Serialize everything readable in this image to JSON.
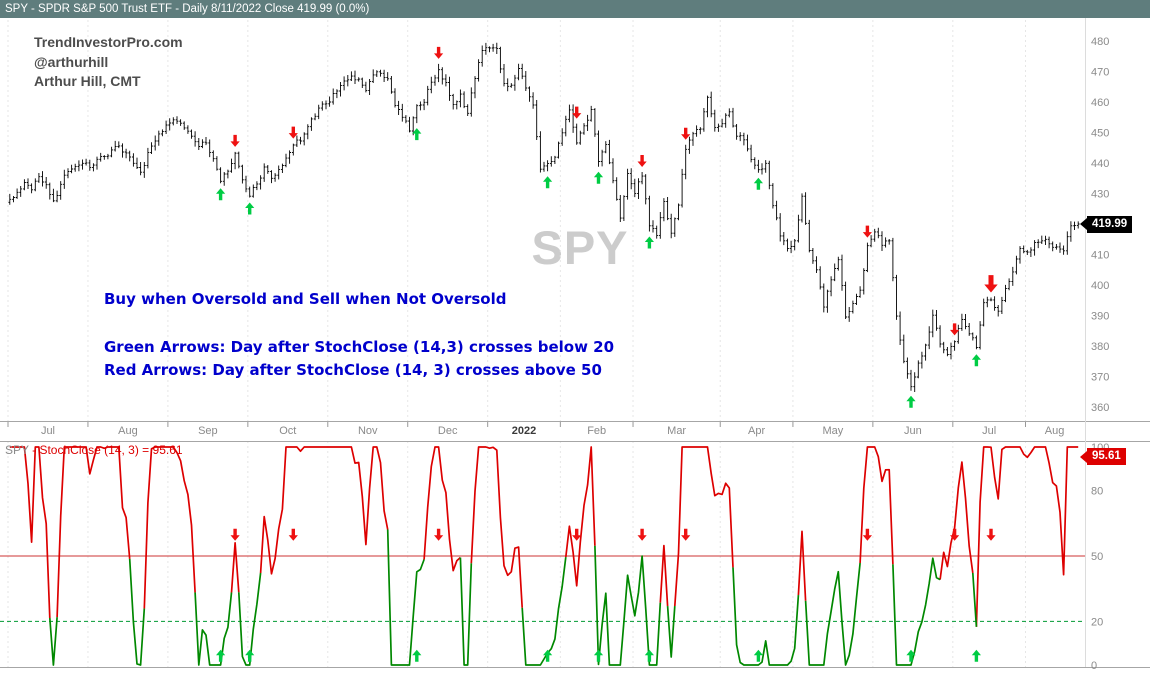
{
  "header": {
    "title": "SPY - SPDR S&P 500 Trust ETF - Daily 8/11/2022 Close 419.99 (0.0%)"
  },
  "branding": {
    "site": "TrendInvestorPro.com",
    "handle": "@arthurhill",
    "author": "Arthur Hill, CMT"
  },
  "watermark": {
    "text": "SPY"
  },
  "annotations": {
    "strategy": "Buy when Oversold and Sell when Not Oversold",
    "green_rule": "Green Arrows: Day after StochClose (14,3) crosses below 20",
    "red_rule": "Red Arrows: Day after StochClose (14, 3) crosses above 50"
  },
  "price_axis": {
    "last_label": "419.99",
    "last_value": 419.99
  },
  "stoch_panel": {
    "title_symbol": "SPY",
    "title_indicator": " - StochClose (14, 3) = 95.61",
    "last_label": "95.61",
    "last_value": 95.61
  },
  "colors": {
    "titlebar_bg": "#5f7d7d",
    "accent_blue": "#0000cc",
    "green_signal": "#00cc44",
    "red_signal": "#ee1111",
    "stoch_red": "#dd0000",
    "stoch_green": "#008800",
    "watermark": "#cccccc",
    "price_callout_bg": "#000000",
    "stoch_callout_bg": "#dd0000"
  },
  "chart_data": [
    {
      "type": "ohlc-bar",
      "symbol": "SPY",
      "name": "SPDR S&P 500 Trust ETF",
      "timeframe": "Daily",
      "x_range": "Jul 2021 - Aug 11 2022",
      "ylim": [
        360,
        480
      ],
      "yticks": [
        480,
        470,
        460,
        450,
        440,
        430,
        420,
        410,
        400,
        390,
        380,
        370,
        360
      ],
      "months": [
        {
          "label": "Jul",
          "i": 0
        },
        {
          "label": "Aug",
          "i": 11
        },
        {
          "label": "Sep",
          "i": 22
        },
        {
          "label": "Oct",
          "i": 33
        },
        {
          "label": "Nov",
          "i": 44
        },
        {
          "label": "Dec",
          "i": 55
        },
        {
          "label": "2022",
          "i": 66
        },
        {
          "label": "Feb",
          "i": 76
        },
        {
          "label": "Mar",
          "i": 86
        },
        {
          "label": "Apr",
          "i": 98
        },
        {
          "label": "May",
          "i": 108
        },
        {
          "label": "Jun",
          "i": 119
        },
        {
          "label": "Jul",
          "i": 130
        },
        {
          "label": "Aug",
          "i": 140
        }
      ],
      "closes": [
        428.1,
        430.4,
        433.6,
        431.2,
        435.5,
        432.9,
        427.6,
        433.0,
        437.2,
        438.9,
        439.9,
        438.5,
        441.2,
        442.1,
        444.3,
        445.6,
        443.3,
        439.9,
        437.0,
        443.4,
        447.2,
        450.3,
        453.1,
        453.7,
        451.5,
        448.8,
        445.4,
        446.6,
        441.4,
        434.0,
        437.3,
        443.2,
        434.5,
        429.1,
        433.1,
        438.7,
        435.0,
        437.9,
        441.6,
        445.9,
        447.2,
        451.9,
        455.3,
        459.3,
        460.0,
        463.6,
        466.9,
        468.5,
        467.5,
        463.8,
        468.9,
        469.4,
        467.6,
        458.9,
        455.0,
        450.5,
        458.8,
        459.9,
        466.5,
        470.6,
        466.4,
        459.2,
        462.6,
        456.3,
        467.7,
        476.9,
        477.7,
        477.5,
        466.1,
        465.5,
        471.0,
        464.6,
        459.0,
        437.98,
        439.8,
        441.9,
        449.9,
        457.4,
        446.6,
        452.2,
        457.5,
        440.5,
        446.1,
        434.2,
        421.95,
        436.6,
        429.98,
        435.7,
        419.4,
        416.25,
        427.4,
        417.0,
        426.2,
        444.5,
        449.6,
        451.1,
        461.55,
        451.6,
        452.9,
        456.8,
        448.8,
        447.6,
        441.1,
        437.8,
        439.9,
        426.0,
        416.1,
        412.0,
        414.5,
        429.1,
        411.3,
        405.0,
        392.75,
        401.7,
        408.3,
        389.5,
        393.9,
        398.3,
        412.9,
        417.4,
        413.0,
        414.5,
        389.8,
        375.0,
        366.65,
        374.4,
        380.3,
        390.1,
        380.65,
        377.25,
        381.4,
        388.7,
        384.0,
        379.5,
        394.2,
        395.1,
        391.4,
        398.9,
        404.3,
        411.99,
        410.8,
        413.9,
        414.5,
        413.5,
        412.5,
        411.2,
        419.4,
        419.99
      ],
      "last_close": 419.99,
      "signals": {
        "green": [
          29,
          33,
          56,
          74,
          81,
          88,
          103,
          124,
          133
        ],
        "red": [
          31,
          39,
          59,
          78,
          87,
          93,
          118,
          130,
          135
        ],
        "big_red": 135,
        "green_meaning": "Buy: day after StochClose (14,3) crosses below 20",
        "red_meaning": "Sell: day after StochClose (14,3) crosses above 50"
      }
    },
    {
      "type": "line",
      "name": "StochClose (14, 3)",
      "ylim": [
        0,
        100
      ],
      "yticks": [
        100,
        80,
        50,
        20,
        0
      ],
      "hlines": [
        {
          "value": 50,
          "style": "solid",
          "color": "#cc3333"
        },
        {
          "value": 20,
          "style": "dashed",
          "color": "#009933"
        }
      ],
      "last_value": 95.61,
      "derived_from": "stochastic of closing prices, lookback 14 days, smoothing 3",
      "segment_color_rule": "green while oversold (from cross below 20 until cross above 50), else red"
    }
  ]
}
